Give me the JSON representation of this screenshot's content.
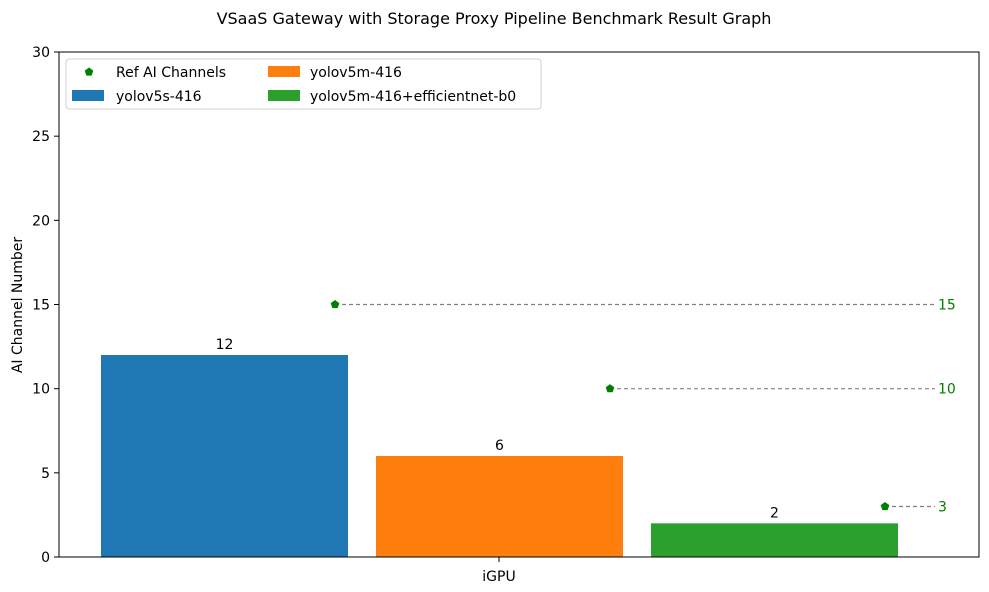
{
  "chart_data": {
    "type": "bar",
    "title": "VSaaS Gateway with Storage Proxy Pipeline Benchmark Result Graph",
    "xlabel": "",
    "ylabel": "AI Channel Number",
    "ylim": [
      0,
      30
    ],
    "yticks": [
      "0",
      "5",
      "10",
      "15",
      "20",
      "25",
      "30"
    ],
    "categories": [
      "iGPU"
    ],
    "grid": false,
    "legend_position": "top-left",
    "series": [
      {
        "name": "yolov5s-416",
        "value": 12,
        "label": "12",
        "ref": 15,
        "ref_label": "15",
        "color": "#1f77b4"
      },
      {
        "name": "yolov5m-416",
        "value": 6,
        "label": "6",
        "ref": 10,
        "ref_label": "10",
        "color": "#ff7f0e"
      },
      {
        "name": "yolov5m-416+efficientnet-b0",
        "value": 2,
        "label": "2",
        "ref": 3,
        "ref_label": "3",
        "color": "#2ca02c"
      }
    ],
    "reference": {
      "name": "Ref AI Channels",
      "color": "#008000",
      "line_color": "#808080"
    }
  }
}
